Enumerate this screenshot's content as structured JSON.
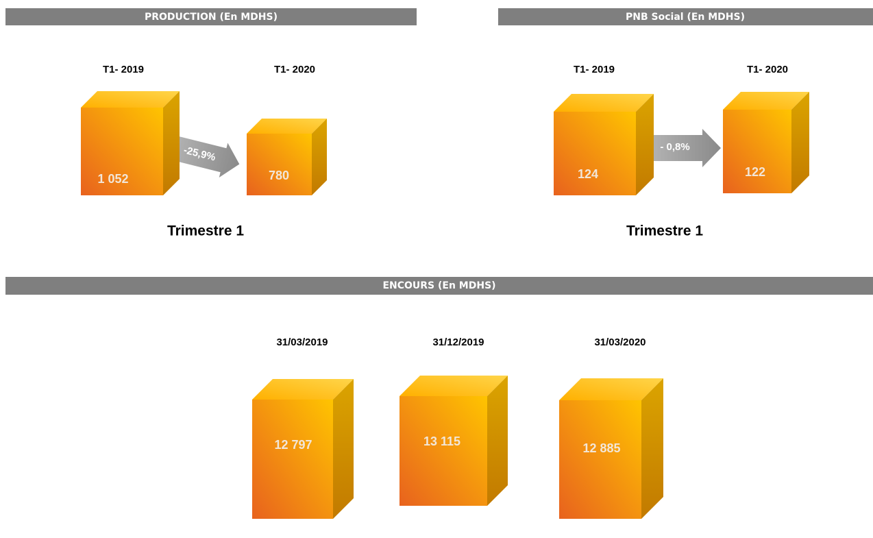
{
  "production": {
    "title": "PRODUCTION (En MDHS)",
    "items": [
      {
        "label": "T1- 2019",
        "value": "1 052"
      },
      {
        "label": "T1- 2020",
        "value": "780"
      }
    ],
    "change": "-25,9%",
    "footer": "Trimestre 1"
  },
  "pnb": {
    "title": "PNB Social (En MDHS)",
    "items": [
      {
        "label": "T1- 2019",
        "value": "124"
      },
      {
        "label": "T1- 2020",
        "value": "122"
      }
    ],
    "change": "- 0,8%",
    "footer": "Trimestre 1"
  },
  "encours": {
    "title": "ENCOURS (En MDHS)",
    "items": [
      {
        "label": "31/03/2019",
        "value": "12 797"
      },
      {
        "label": "31/12/2019",
        "value": "13 115"
      },
      {
        "label": "31/03/2020",
        "value": "12 885"
      }
    ]
  }
}
